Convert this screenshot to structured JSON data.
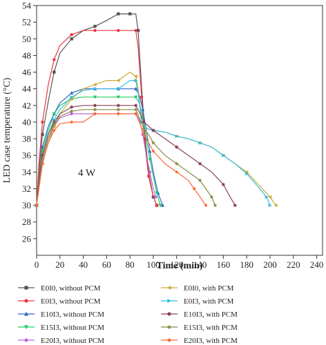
{
  "chart_data": {
    "type": "line",
    "xlabel": "Time (min)",
    "ylabel": "LED case temperature (°C)",
    "annotation": "4 W",
    "xlim": [
      0,
      245
    ],
    "ylim": [
      24,
      54
    ],
    "xticks": [
      0,
      20,
      40,
      60,
      80,
      100,
      120,
      140,
      160,
      180,
      200,
      220,
      240
    ],
    "yticks": [
      26,
      28,
      30,
      32,
      34,
      36,
      38,
      40,
      42,
      44,
      46,
      48,
      50,
      52,
      54
    ],
    "grid": false,
    "legend_position": "bottom",
    "series": [
      {
        "name": "E0I0, without PCM",
        "color": "#555555",
        "marker": "square",
        "x": [
          0,
          2,
          5,
          10,
          15,
          20,
          30,
          40,
          50,
          60,
          70,
          75,
          80,
          85,
          87,
          90,
          93,
          96,
          100,
          103
        ],
        "y": [
          30,
          34,
          38.5,
          42.5,
          46,
          48.3,
          50,
          51,
          51.5,
          52.2,
          53,
          53,
          53,
          53,
          51,
          44,
          38,
          34,
          31,
          30
        ]
      },
      {
        "name": "E0I3, without PCM",
        "color": "#ee3344",
        "marker": "circle",
        "x": [
          0,
          2,
          5,
          10,
          15,
          20,
          30,
          40,
          50,
          60,
          70,
          80,
          85,
          87,
          90,
          93,
          96,
          100,
          103
        ],
        "y": [
          30,
          35,
          40,
          44.5,
          47.5,
          49.2,
          50.5,
          51,
          51,
          51,
          51,
          51,
          51,
          49,
          43,
          37,
          33.5,
          31,
          30
        ]
      },
      {
        "name": "E10I3, without PCM",
        "color": "#3366cc",
        "marker": "triangle-up",
        "x": [
          0,
          2,
          5,
          10,
          15,
          20,
          30,
          40,
          50,
          60,
          70,
          80,
          85,
          88,
          91,
          94,
          97,
          100,
          104,
          108
        ],
        "y": [
          30,
          33,
          37,
          39.5,
          41,
          42.3,
          43.5,
          44,
          44,
          44,
          44,
          44,
          44,
          43.2,
          41.5,
          39,
          36.5,
          34,
          31.5,
          30
        ]
      },
      {
        "name": "E15I3, without PCM",
        "color": "#22cc66",
        "marker": "triangle-down",
        "x": [
          0,
          2,
          5,
          10,
          15,
          20,
          30,
          40,
          50,
          60,
          70,
          80,
          85,
          88,
          91,
          94,
          97,
          100,
          103,
          106
        ],
        "y": [
          30,
          33,
          36.5,
          39,
          41,
          42,
          42.8,
          43,
          43,
          43,
          43,
          43,
          43,
          42.3,
          40.5,
          38,
          35.5,
          33.5,
          31.5,
          30
        ]
      },
      {
        "name": "E20I3, without PCM",
        "color": "#bb66dd",
        "marker": "diamond",
        "x": [
          0,
          2,
          5,
          10,
          15,
          20,
          30,
          40,
          50,
          60,
          70,
          80,
          85,
          88,
          91,
          94,
          97,
          100,
          102
        ],
        "y": [
          30,
          32.5,
          35.5,
          38,
          39.5,
          40.5,
          41,
          41,
          41,
          41,
          41,
          41,
          41,
          40.3,
          38.5,
          36,
          34,
          32,
          31
        ]
      },
      {
        "name": "E0I0, with PCM",
        "color": "#ccaa33",
        "marker": "triangle-left",
        "x": [
          0,
          2,
          5,
          10,
          15,
          20,
          30,
          40,
          50,
          60,
          70,
          80,
          85,
          87,
          90,
          95,
          100,
          110,
          120,
          130,
          140,
          150,
          160,
          170,
          180,
          190,
          200,
          205
        ],
        "y": [
          30,
          32.5,
          35,
          37.5,
          39.5,
          41,
          42.8,
          44,
          44.5,
          45,
          45,
          46,
          45.5,
          44,
          40,
          39.2,
          39,
          38.8,
          38.3,
          38,
          37.5,
          37,
          36,
          35,
          34,
          32.5,
          31,
          30
        ]
      },
      {
        "name": "E0I3, with PCM",
        "color": "#33bbdd",
        "marker": "triangle-right",
        "x": [
          0,
          2,
          5,
          10,
          15,
          20,
          30,
          40,
          50,
          60,
          70,
          80,
          85,
          87,
          90,
          95,
          100,
          110,
          120,
          130,
          140,
          150,
          160,
          170,
          180,
          190,
          197,
          200
        ],
        "y": [
          30,
          33,
          36,
          38.5,
          40.3,
          41.5,
          43,
          43.8,
          44,
          44,
          44,
          45,
          45,
          43.5,
          40,
          39.2,
          39,
          38.8,
          38.3,
          38,
          37.5,
          37,
          36,
          35,
          33.8,
          32.2,
          31,
          30
        ]
      },
      {
        "name": "E10I3, with PCM",
        "color": "#884455",
        "marker": "circle",
        "x": [
          0,
          2,
          5,
          10,
          15,
          20,
          30,
          40,
          50,
          60,
          70,
          80,
          85,
          88,
          92,
          96,
          100,
          110,
          120,
          130,
          140,
          150,
          160,
          165,
          170
        ],
        "y": [
          30,
          33,
          36,
          38.5,
          40,
          41,
          41.8,
          42,
          42,
          42,
          42,
          42,
          42,
          41.2,
          40,
          39.5,
          39,
          38,
          37,
          36,
          35,
          34,
          32.5,
          31.2,
          30
        ]
      },
      {
        "name": "E15I3, with PCM",
        "color": "#888844",
        "marker": "star",
        "x": [
          0,
          2,
          5,
          10,
          15,
          20,
          30,
          40,
          50,
          60,
          70,
          80,
          85,
          88,
          92,
          96,
          100,
          110,
          120,
          130,
          140,
          145,
          150,
          153
        ],
        "y": [
          30,
          32.5,
          35.5,
          38,
          39.8,
          40.7,
          41.3,
          41.5,
          41.5,
          41.5,
          41.5,
          41.5,
          41.5,
          40.5,
          39.2,
          38.5,
          37.5,
          36,
          35,
          34,
          33,
          32,
          31,
          30
        ]
      },
      {
        "name": "E20I3, with PCM",
        "color": "#ff6633",
        "marker": "hexagon",
        "x": [
          0,
          2,
          5,
          10,
          15,
          20,
          30,
          40,
          50,
          60,
          70,
          80,
          85,
          88,
          92,
          96,
          100,
          110,
          120,
          130,
          135,
          140,
          145
        ],
        "y": [
          30,
          32,
          35,
          37.5,
          39,
          39.8,
          40,
          40,
          41,
          41,
          41,
          41,
          41,
          40,
          38.5,
          37.5,
          36.5,
          35,
          34,
          33,
          32,
          31,
          30
        ]
      }
    ]
  }
}
